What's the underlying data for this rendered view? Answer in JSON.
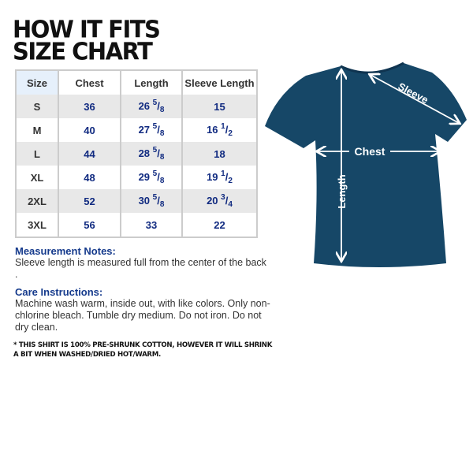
{
  "title_lines": [
    "HOW IT FITS",
    "SIZE CHART"
  ],
  "table": {
    "headers": [
      "Size",
      "Chest",
      "Length",
      "Sleeve Length"
    ],
    "rows": [
      {
        "size": "S",
        "chest": "36",
        "length": {
          "whole": "26",
          "num": "5",
          "den": "8"
        },
        "sleeve": {
          "whole": "15",
          "num": "",
          "den": ""
        }
      },
      {
        "size": "M",
        "chest": "40",
        "length": {
          "whole": "27",
          "num": "5",
          "den": "8"
        },
        "sleeve": {
          "whole": "16",
          "num": "1",
          "den": "2"
        }
      },
      {
        "size": "L",
        "chest": "44",
        "length": {
          "whole": "28",
          "num": "5",
          "den": "8"
        },
        "sleeve": {
          "whole": "18",
          "num": "",
          "den": ""
        }
      },
      {
        "size": "XL",
        "chest": "48",
        "length": {
          "whole": "29",
          "num": "5",
          "den": "8"
        },
        "sleeve": {
          "whole": "19",
          "num": "1",
          "den": "2"
        }
      },
      {
        "size": "2XL",
        "chest": "52",
        "length": {
          "whole": "30",
          "num": "5",
          "den": "8"
        },
        "sleeve": {
          "whole": "20",
          "num": "3",
          "den": "4"
        }
      },
      {
        "size": "3XL",
        "chest": "56",
        "length": {
          "whole": "33",
          "num": "",
          "den": ""
        },
        "sleeve": {
          "whole": "22",
          "num": "",
          "den": ""
        }
      }
    ]
  },
  "measurement_notes": {
    "heading": "Measurement Notes:",
    "text": "Sleeve length is measured full from the center of the back ."
  },
  "care": {
    "heading": "Care Instructions:",
    "text": "Machine wash warm, inside out, with like colors. Only non-chlorine bleach. Tumble dry medium. Do not iron. Do not dry clean."
  },
  "disclaimer": "* THIS SHIRT IS 100% PRE-SHRUNK COTTON, HOWEVER IT WILL SHRINK A BIT WHEN WASHED/DRIED HOT/WARM.",
  "diagram": {
    "sleeve_label": "Sleeve",
    "chest_label": "Chest",
    "length_label": "Length",
    "shirt_color": "#164767"
  }
}
